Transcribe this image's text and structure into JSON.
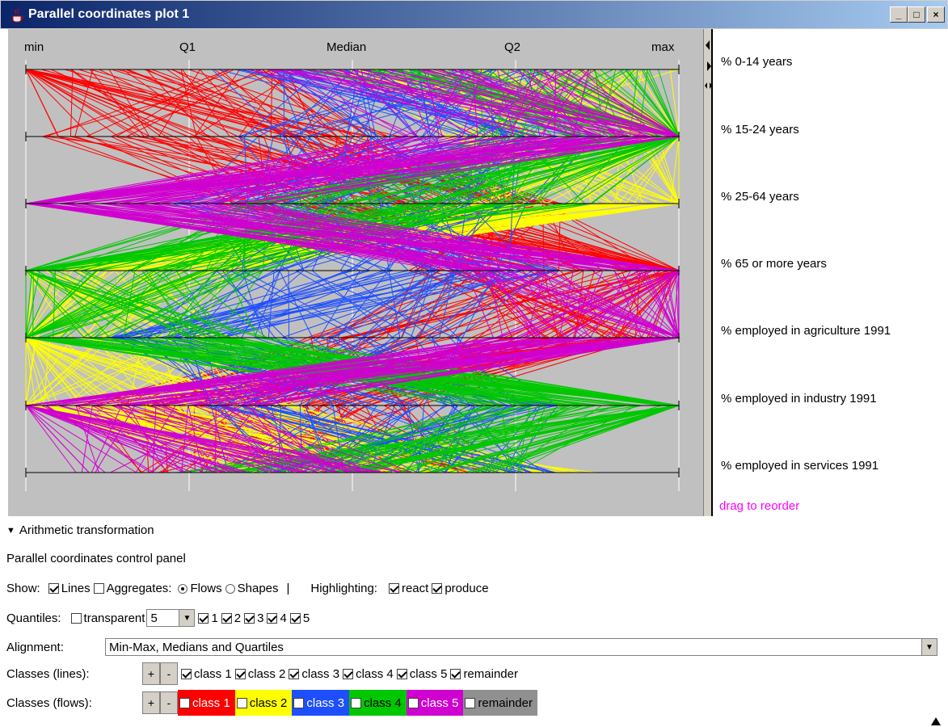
{
  "window": {
    "title": "Parallel coordinates plot 1",
    "buttons": [
      "_",
      "□",
      "×"
    ]
  },
  "plot": {
    "quantile_labels": [
      "min",
      "Q1",
      "Median",
      "Q2",
      "max"
    ],
    "axes": [
      "% 0-14 years",
      "% 15-24 years",
      "% 25-64 years",
      "% 65 or more years",
      "% employed in agriculture 1991",
      "% employed in industry 1991",
      "% employed in services 1991"
    ],
    "drag_hint": "drag to reorder",
    "classes": [
      {
        "name": "class 1",
        "color": "#ff0000"
      },
      {
        "name": "class 2",
        "color": "#ffff00"
      },
      {
        "name": "class 3",
        "color": "#1e4fff"
      },
      {
        "name": "class 4",
        "color": "#00c800"
      },
      {
        "name": "class 5",
        "color": "#d000d0"
      }
    ]
  },
  "panel": {
    "expander": "Arithmetic transformation",
    "title": "Parallel coordinates control panel",
    "show_label": "Show:",
    "lines": "Lines",
    "aggregates": "Aggregates:",
    "flows": "Flows",
    "shapes": "Shapes",
    "pipe": "|",
    "highlighting": "Highlighting:",
    "react": "react",
    "produce": "produce",
    "quantiles_label": "Quantiles:",
    "transparent": "transparent",
    "quantile_count": "5",
    "quantile_checks": [
      "1",
      "2",
      "3",
      "4",
      "5"
    ],
    "alignment_label": "Alignment:",
    "alignment_value": "Min-Max, Medians and Quartiles",
    "classes_lines_label": "Classes (lines):",
    "classes_flows_label": "Classes (flows):",
    "plus": "+",
    "minus": "-",
    "class_items": [
      "class 1",
      "class 2",
      "class 3",
      "class 4",
      "class 5",
      "remainder"
    ],
    "flow_colors": [
      "#ff0000",
      "#ffff00",
      "#1e4fff",
      "#00c800",
      "#d000d0",
      "#909090"
    ]
  }
}
